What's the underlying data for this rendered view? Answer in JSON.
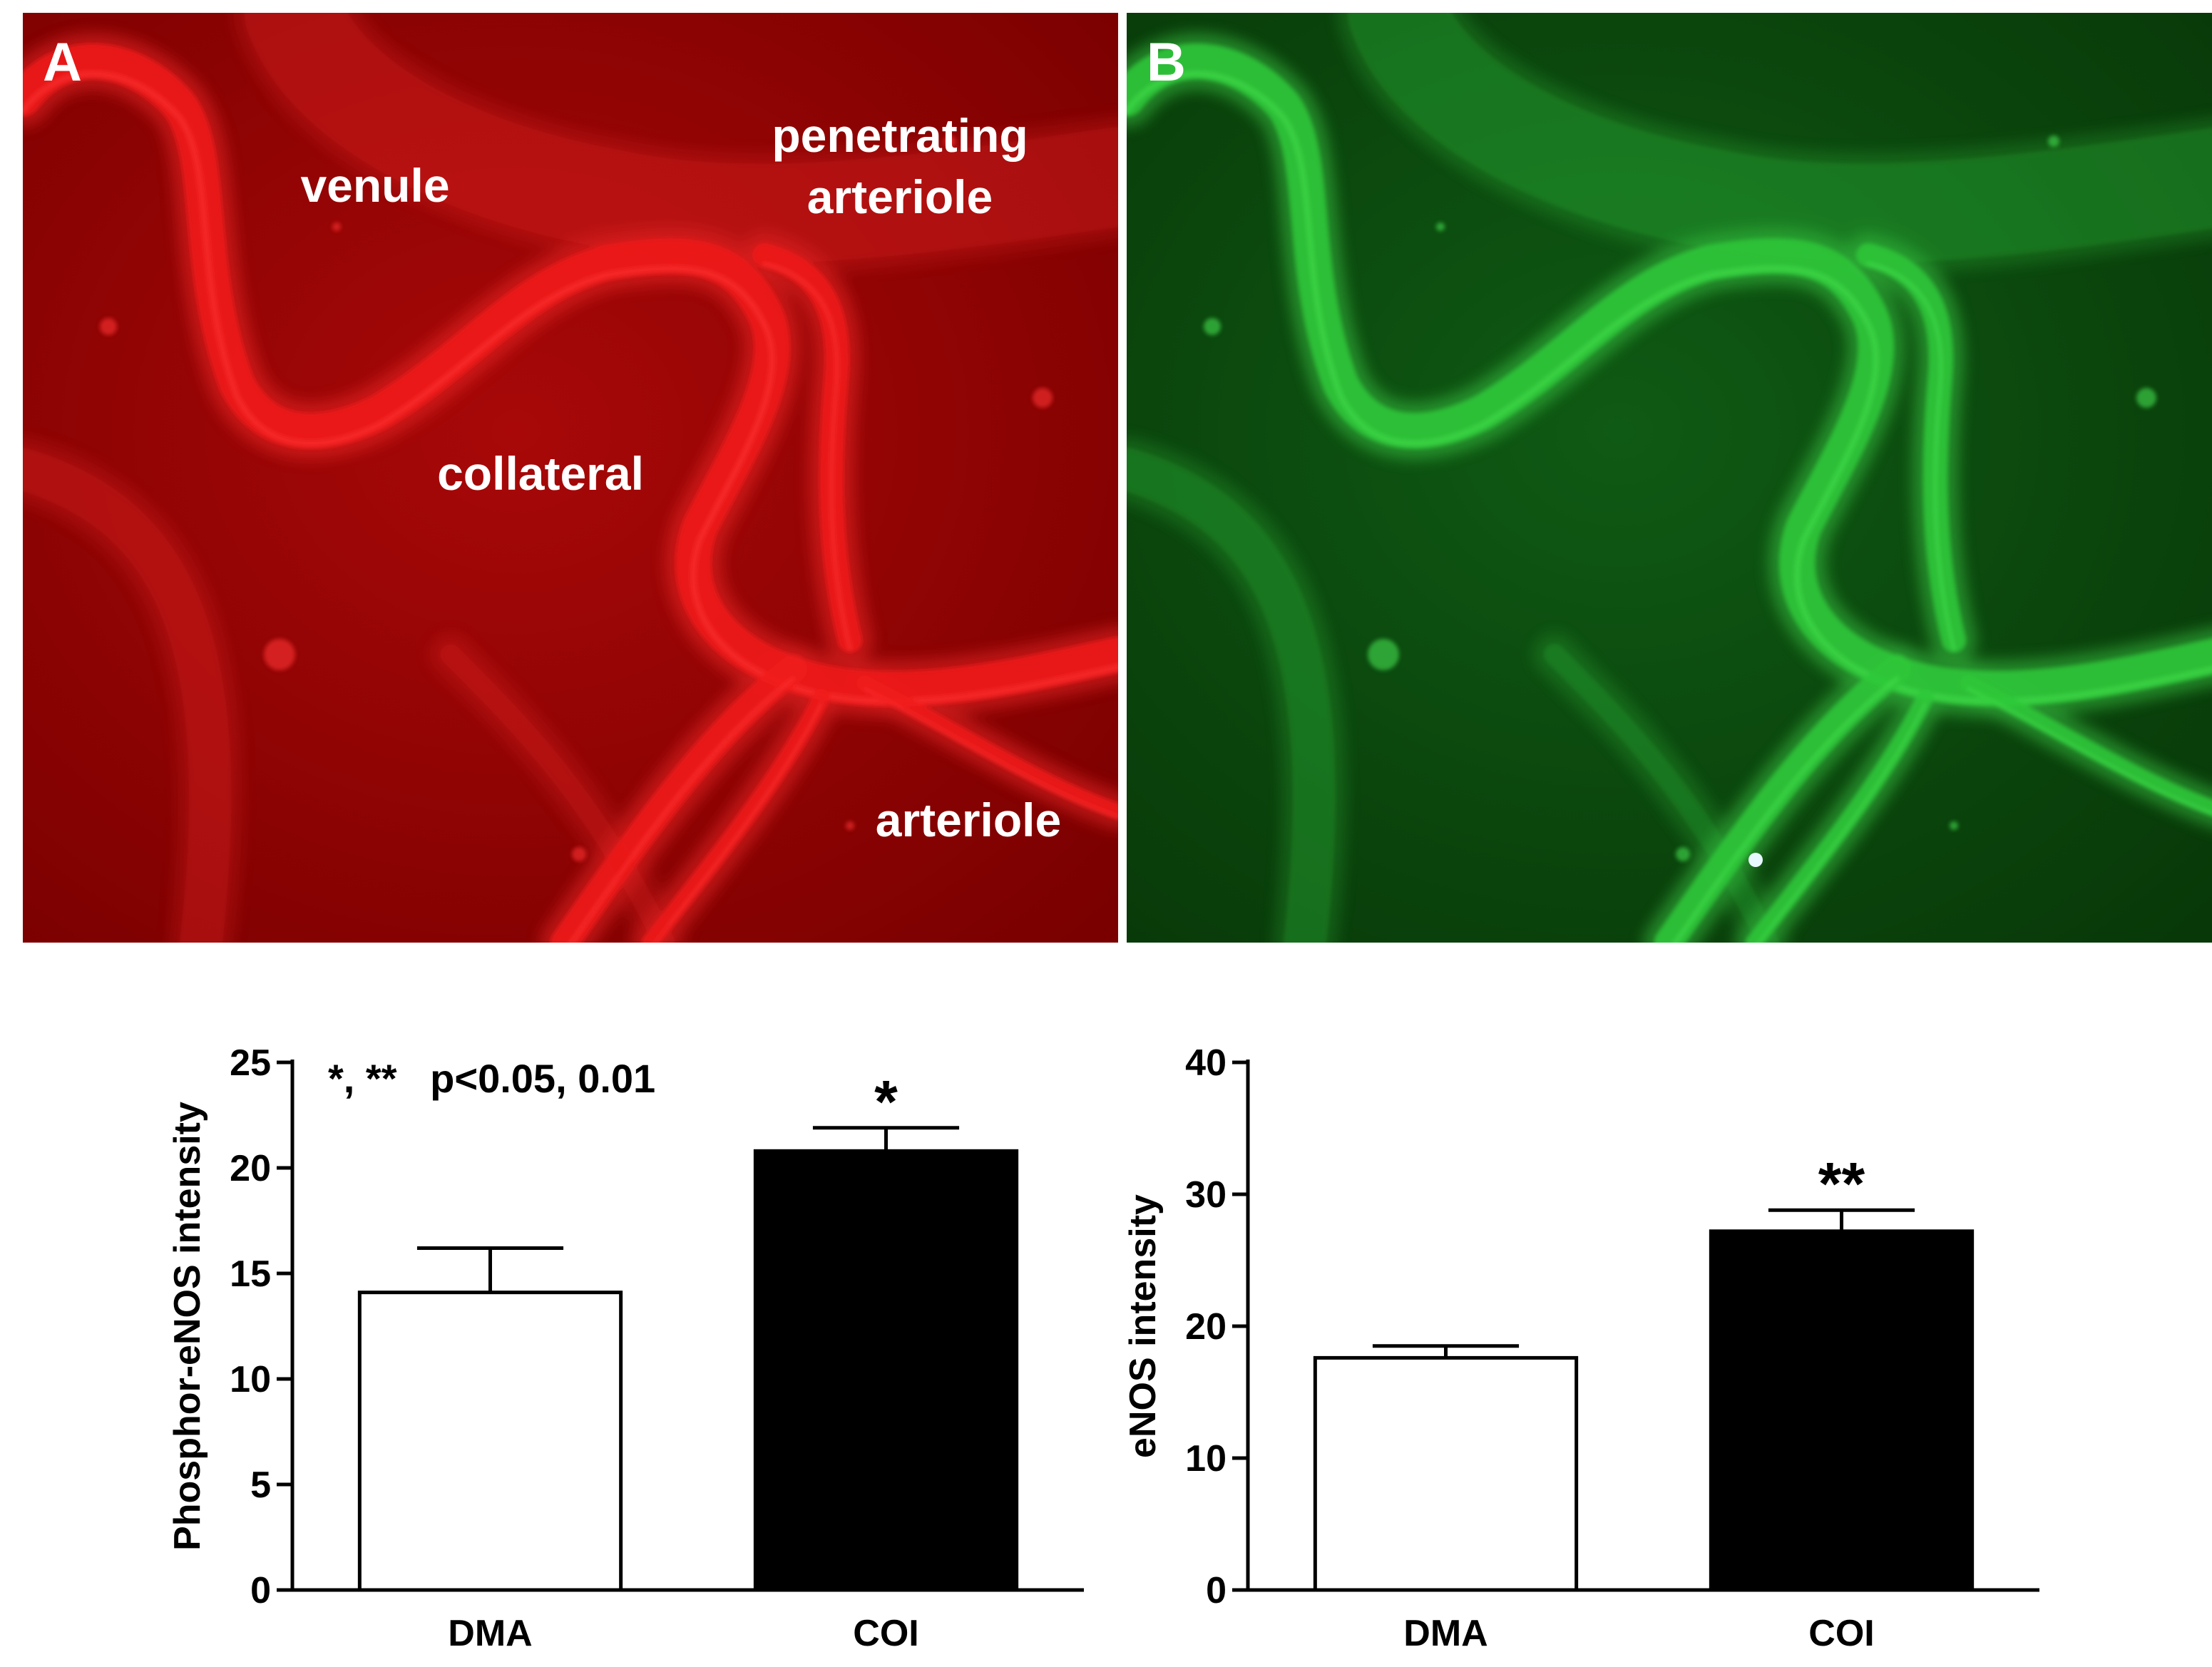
{
  "panels": [
    {
      "letter": "A",
      "colors": {
        "bg_dark": "#7a0000",
        "bg_mid": "#a80808",
        "vessel": "#f01a1a",
        "vessel_glow": "#ff3030",
        "letter": "#ffffff"
      },
      "labels": [
        {
          "text": "venule"
        },
        {
          "text": "penetrating\narteriole"
        },
        {
          "text": "collateral"
        },
        {
          "text": "arteriole"
        }
      ]
    },
    {
      "letter": "B",
      "colors": {
        "bg_dark": "#083808",
        "bg_mid": "#0f5a14",
        "vessel": "#2ec83a",
        "vessel_glow": "#46e050",
        "letter": "#ffffff"
      },
      "labels": []
    }
  ],
  "chart_data": [
    {
      "type": "bar",
      "categories": [
        "DMA",
        "COI"
      ],
      "values": [
        14.1,
        20.8
      ],
      "errors": [
        2.1,
        1.1
      ],
      "bar_colors": [
        "#ffffff",
        "#000000"
      ],
      "significance": [
        "",
        "*"
      ],
      "ylabel": "Phosphor-eNOS intensity",
      "ylim": [
        0,
        25
      ],
      "yticks": [
        0,
        5,
        10,
        15,
        20,
        25
      ],
      "annotation": "*, **   p<0.05, 0.01"
    },
    {
      "type": "bar",
      "categories": [
        "DMA",
        "COI"
      ],
      "values": [
        17.6,
        27.2
      ],
      "errors": [
        0.9,
        1.6
      ],
      "bar_colors": [
        "#ffffff",
        "#000000"
      ],
      "significance": [
        "",
        "**"
      ],
      "ylabel": "eNOS intensity",
      "ylim": [
        0,
        40
      ],
      "yticks": [
        0,
        10,
        20,
        30,
        40
      ]
    }
  ]
}
